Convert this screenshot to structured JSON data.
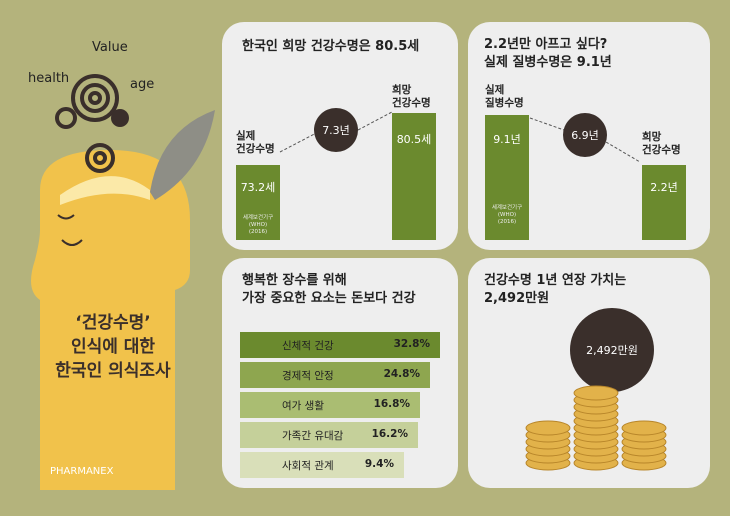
{
  "illustration": {
    "words": [
      "Value",
      "health",
      "age"
    ],
    "headline": [
      "‘건강수명’",
      "인식에 대한",
      "한국인 의식조사"
    ],
    "brand": "PHARMANEX"
  },
  "panel1": {
    "title": "한국인 희망 건강수명은 80.5세",
    "left_label": [
      "실제",
      "건강수명"
    ],
    "left_value": "73.2세",
    "source": [
      "세계보건기구(WHO)",
      "(2016)"
    ],
    "gap": "7.3년",
    "right_label": [
      "희망",
      "건강수명"
    ],
    "right_value": "80.5세"
  },
  "panel2": {
    "title": [
      "2.2년만 아프고 싶다?",
      "실제 질병수명은 9.1년"
    ],
    "left_label": [
      "실제",
      "질병수명"
    ],
    "left_value": "9.1년",
    "source": [
      "세계보건기구(WHO)",
      "(2016)"
    ],
    "gap": "6.9년",
    "right_label": [
      "희망",
      "건강수명"
    ],
    "right_value": "2.2년"
  },
  "panel3": {
    "title": [
      "행복한 장수를 위해",
      "가장 중요한 요소는 돈보다 건강"
    ],
    "rows": [
      [
        "신체적 건강",
        "32.8%"
      ],
      [
        "경제적 안정",
        "24.8%"
      ],
      [
        "여가 생활",
        "16.8%"
      ],
      [
        "가족간 유대감",
        "16.2%"
      ],
      [
        "사회적 관계",
        "9.4%"
      ]
    ]
  },
  "panel4": {
    "title": [
      "건강수명 1년 연장 가치는",
      "2,492만원"
    ],
    "value": "2,492만원"
  }
}
